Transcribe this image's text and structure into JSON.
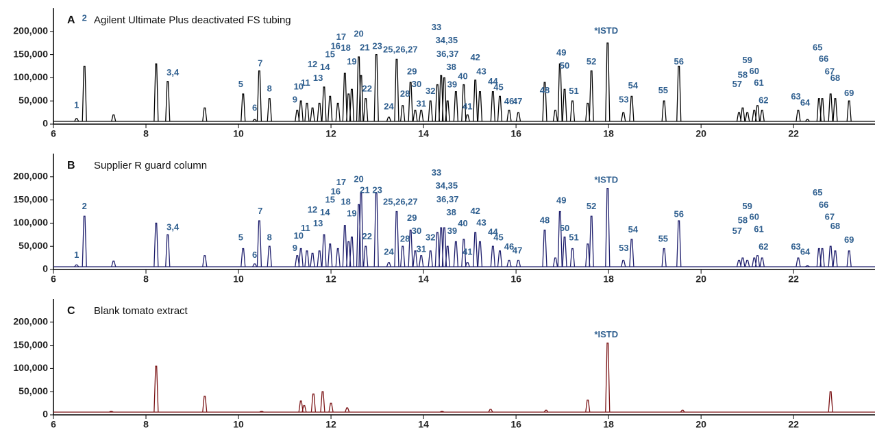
{
  "chart_data": [
    {
      "type": "line",
      "panel": "A",
      "title": "Agilent Ultimate Plus deactivated FS tubing",
      "color": "#000000",
      "label_color": "#2f5f8f",
      "xlim": [
        6,
        23.76
      ],
      "xticks": [
        6,
        8,
        10,
        12,
        14,
        16,
        18,
        20,
        22
      ],
      "ylim": [
        0,
        250000
      ],
      "yticks": [
        0,
        {
          "value": 50000,
          "label": "50,000"
        },
        {
          "value": 100000,
          "label": "100,000"
        },
        {
          "value": 150000,
          "label": "150,000"
        },
        {
          "value": 200000,
          "label": "200,000"
        }
      ],
      "x": [
        6.5,
        6.67,
        7.3,
        8.22,
        8.47,
        9.27,
        10.1,
        10.35,
        10.45,
        10.67,
        11.27,
        11.35,
        11.48,
        11.6,
        11.75,
        11.85,
        11.98,
        12.15,
        12.3,
        12.38,
        12.45,
        12.6,
        12.65,
        12.75,
        12.98,
        13.25,
        13.42,
        13.55,
        13.72,
        13.82,
        13.95,
        14.15,
        14.3,
        14.38,
        14.45,
        14.52,
        14.7,
        14.87,
        14.95,
        15.12,
        15.22,
        15.5,
        15.65,
        15.85,
        16.05,
        16.62,
        16.85,
        16.95,
        17.05,
        17.22,
        17.55,
        17.63,
        17.98,
        18.32,
        18.5,
        19.2,
        19.52,
        20.82,
        20.9,
        21.0,
        21.15,
        21.22,
        21.32,
        22.1,
        22.3,
        22.55,
        22.62,
        22.8,
        22.9,
        23.2
      ],
      "values": [
        12000,
        125000,
        20000,
        130000,
        92000,
        35000,
        65000,
        10000,
        115000,
        55000,
        30000,
        50000,
        45000,
        35000,
        45000,
        80000,
        60000,
        45000,
        110000,
        65000,
        75000,
        145000,
        105000,
        55000,
        150000,
        15000,
        140000,
        40000,
        90000,
        30000,
        30000,
        50000,
        85000,
        105000,
        100000,
        50000,
        70000,
        85000,
        20000,
        95000,
        70000,
        70000,
        60000,
        30000,
        25000,
        90000,
        30000,
        130000,
        75000,
        50000,
        45000,
        115000,
        175000,
        25000,
        60000,
        50000,
        125000,
        25000,
        35000,
        25000,
        30000,
        40000,
        30000,
        30000,
        10000,
        55000,
        55000,
        65000,
        55000,
        50000
      ],
      "annotations": [
        {
          "text": "1",
          "x": 6.5,
          "y": 40000
        },
        {
          "text": "2",
          "x": 6.67,
          "y": 228000
        },
        {
          "text": "3,4",
          "x": 8.58,
          "y": 110000
        },
        {
          "text": "5",
          "x": 10.05,
          "y": 85000
        },
        {
          "text": "6",
          "x": 10.35,
          "y": 34000
        },
        {
          "text": "7",
          "x": 10.47,
          "y": 130000
        },
        {
          "text": "8",
          "x": 10.67,
          "y": 75000
        },
        {
          "text": "9",
          "x": 11.22,
          "y": 52000
        },
        {
          "text": "10",
          "x": 11.3,
          "y": 80000
        },
        {
          "text": "11",
          "x": 11.45,
          "y": 88000
        },
        {
          "text": "12",
          "x": 11.6,
          "y": 128000
        },
        {
          "text": "13",
          "x": 11.72,
          "y": 98000
        },
        {
          "text": "14",
          "x": 11.87,
          "y": 122000
        },
        {
          "text": "15",
          "x": 11.98,
          "y": 149000
        },
        {
          "text": "16",
          "x": 12.1,
          "y": 167000
        },
        {
          "text": "17",
          "x": 12.22,
          "y": 187000
        },
        {
          "text": "18",
          "x": 12.32,
          "y": 163000
        },
        {
          "text": "19",
          "x": 12.45,
          "y": 134000
        },
        {
          "text": "20",
          "x": 12.6,
          "y": 194000
        },
        {
          "text": "21",
          "x": 12.73,
          "y": 164000
        },
        {
          "text": "22",
          "x": 12.78,
          "y": 75000
        },
        {
          "text": "23",
          "x": 13.0,
          "y": 167000
        },
        {
          "text": "24",
          "x": 13.25,
          "y": 37000
        },
        {
          "text": "25,26,27",
          "x": 13.5,
          "y": 160000
        },
        {
          "text": "28",
          "x": 13.6,
          "y": 64000
        },
        {
          "text": "29",
          "x": 13.75,
          "y": 112000
        },
        {
          "text": "30",
          "x": 13.85,
          "y": 85000
        },
        {
          "text": "31",
          "x": 13.95,
          "y": 43000
        },
        {
          "text": "32",
          "x": 14.15,
          "y": 70000
        },
        {
          "text": "33",
          "x": 14.28,
          "y": 208000
        },
        {
          "text": "34,35",
          "x": 14.5,
          "y": 180000
        },
        {
          "text": "36,37",
          "x": 14.52,
          "y": 150000
        },
        {
          "text": "38",
          "x": 14.6,
          "y": 122000
        },
        {
          "text": "39",
          "x": 14.62,
          "y": 84000
        },
        {
          "text": "40",
          "x": 14.85,
          "y": 102000
        },
        {
          "text": "41",
          "x": 14.95,
          "y": 37000
        },
        {
          "text": "42",
          "x": 15.12,
          "y": 143000
        },
        {
          "text": "43",
          "x": 15.25,
          "y": 112000
        },
        {
          "text": "44",
          "x": 15.5,
          "y": 91000
        },
        {
          "text": "45",
          "x": 15.62,
          "y": 78000
        },
        {
          "text": "46",
          "x": 15.85,
          "y": 48000
        },
        {
          "text": "47",
          "x": 16.03,
          "y": 48000
        },
        {
          "text": "48",
          "x": 16.62,
          "y": 72000
        },
        {
          "text": "49",
          "x": 16.98,
          "y": 153000
        },
        {
          "text": "50",
          "x": 17.05,
          "y": 125000
        },
        {
          "text": "51",
          "x": 17.25,
          "y": 70000
        },
        {
          "text": "52",
          "x": 17.63,
          "y": 134000
        },
        {
          "text": "*ISTD",
          "x": 17.95,
          "y": 200000
        },
        {
          "text": "53",
          "x": 18.33,
          "y": 52000
        },
        {
          "text": "54",
          "x": 18.53,
          "y": 82000
        },
        {
          "text": "55",
          "x": 19.18,
          "y": 72000
        },
        {
          "text": "56",
          "x": 19.52,
          "y": 134000
        },
        {
          "text": "57",
          "x": 20.78,
          "y": 85000
        },
        {
          "text": "58",
          "x": 20.9,
          "y": 105000
        },
        {
          "text": "59",
          "x": 21.0,
          "y": 137000
        },
        {
          "text": "60",
          "x": 21.15,
          "y": 113000
        },
        {
          "text": "61",
          "x": 21.25,
          "y": 88000
        },
        {
          "text": "62",
          "x": 21.35,
          "y": 50000
        },
        {
          "text": "63",
          "x": 22.05,
          "y": 58000
        },
        {
          "text": "64",
          "x": 22.25,
          "y": 45000
        },
        {
          "text": "65",
          "x": 22.52,
          "y": 164000
        },
        {
          "text": "66",
          "x": 22.65,
          "y": 140000
        },
        {
          "text": "67",
          "x": 22.78,
          "y": 112000
        },
        {
          "text": "68",
          "x": 22.9,
          "y": 98000
        },
        {
          "text": "69",
          "x": 23.2,
          "y": 66000
        }
      ]
    },
    {
      "type": "line",
      "panel": "B",
      "title": "Supplier R guard column",
      "color": "#1c1c6b",
      "label_color": "#2f5f8f",
      "xlim": [
        6,
        23.76
      ],
      "xticks": [
        6,
        8,
        10,
        12,
        14,
        16,
        18,
        20,
        22
      ],
      "ylim": [
        0,
        250000
      ],
      "yticks": [
        0,
        {
          "value": 50000,
          "label": "50,000"
        },
        {
          "value": 100000,
          "label": "100,000"
        },
        {
          "value": 150000,
          "label": "150,000"
        },
        {
          "value": 200000,
          "label": "200,000"
        }
      ],
      "x": [
        6.5,
        6.67,
        7.3,
        8.22,
        8.47,
        9.27,
        10.1,
        10.35,
        10.45,
        10.67,
        11.27,
        11.35,
        11.48,
        11.6,
        11.75,
        11.85,
        11.98,
        12.15,
        12.3,
        12.38,
        12.45,
        12.6,
        12.65,
        12.75,
        12.98,
        13.25,
        13.42,
        13.55,
        13.72,
        13.82,
        13.95,
        14.15,
        14.3,
        14.38,
        14.45,
        14.52,
        14.7,
        14.87,
        14.95,
        15.12,
        15.22,
        15.5,
        15.65,
        15.85,
        16.05,
        16.62,
        16.85,
        16.95,
        17.05,
        17.22,
        17.55,
        17.63,
        17.98,
        18.32,
        18.5,
        19.2,
        19.52,
        20.82,
        20.9,
        21.0,
        21.15,
        21.22,
        21.32,
        22.1,
        22.3,
        22.55,
        22.62,
        22.8,
        22.9,
        23.2
      ],
      "values": [
        10000,
        115000,
        18000,
        100000,
        75000,
        30000,
        45000,
        12000,
        105000,
        50000,
        30000,
        45000,
        40000,
        35000,
        40000,
        75000,
        55000,
        45000,
        95000,
        60000,
        70000,
        140000,
        165000,
        50000,
        165000,
        15000,
        125000,
        50000,
        85000,
        40000,
        30000,
        40000,
        80000,
        90000,
        90000,
        50000,
        60000,
        65000,
        15000,
        80000,
        60000,
        50000,
        40000,
        20000,
        20000,
        85000,
        25000,
        125000,
        70000,
        45000,
        55000,
        115000,
        175000,
        20000,
        65000,
        45000,
        105000,
        20000,
        25000,
        20000,
        25000,
        30000,
        25000,
        25000,
        8000,
        45000,
        45000,
        50000,
        40000,
        40000
      ],
      "annotations": [
        {
          "text": "1",
          "x": 6.5,
          "y": 30000
        },
        {
          "text": "2",
          "x": 6.67,
          "y": 135000
        },
        {
          "text": "3,4",
          "x": 8.58,
          "y": 90000
        },
        {
          "text": "5",
          "x": 10.05,
          "y": 68000
        },
        {
          "text": "6",
          "x": 10.35,
          "y": 30000
        },
        {
          "text": "7",
          "x": 10.47,
          "y": 125000
        },
        {
          "text": "8",
          "x": 10.67,
          "y": 68000
        },
        {
          "text": "9",
          "x": 11.22,
          "y": 45000
        },
        {
          "text": "10",
          "x": 11.3,
          "y": 72000
        },
        {
          "text": "11",
          "x": 11.45,
          "y": 88000
        },
        {
          "text": "12",
          "x": 11.6,
          "y": 128000
        },
        {
          "text": "13",
          "x": 11.72,
          "y": 98000
        },
        {
          "text": "14",
          "x": 11.87,
          "y": 122000
        },
        {
          "text": "15",
          "x": 11.98,
          "y": 149000
        },
        {
          "text": "16",
          "x": 12.1,
          "y": 167000
        },
        {
          "text": "17",
          "x": 12.22,
          "y": 187000
        },
        {
          "text": "18",
          "x": 12.32,
          "y": 145000
        },
        {
          "text": "19",
          "x": 12.45,
          "y": 120000
        },
        {
          "text": "20",
          "x": 12.6,
          "y": 194000
        },
        {
          "text": "21",
          "x": 12.73,
          "y": 170000
        },
        {
          "text": "22",
          "x": 12.78,
          "y": 70000
        },
        {
          "text": "23",
          "x": 13.0,
          "y": 170000
        },
        {
          "text": "24",
          "x": 13.25,
          "y": 37000
        },
        {
          "text": "25,26,27",
          "x": 13.5,
          "y": 145000
        },
        {
          "text": "28",
          "x": 13.6,
          "y": 65000
        },
        {
          "text": "29",
          "x": 13.75,
          "y": 110000
        },
        {
          "text": "30",
          "x": 13.85,
          "y": 82000
        },
        {
          "text": "31",
          "x": 13.95,
          "y": 43000
        },
        {
          "text": "32",
          "x": 14.15,
          "y": 68000
        },
        {
          "text": "33",
          "x": 14.28,
          "y": 208000
        },
        {
          "text": "34,35",
          "x": 14.5,
          "y": 180000
        },
        {
          "text": "36,37",
          "x": 14.52,
          "y": 150000
        },
        {
          "text": "38",
          "x": 14.6,
          "y": 122000
        },
        {
          "text": "39",
          "x": 14.62,
          "y": 82000
        },
        {
          "text": "40",
          "x": 14.85,
          "y": 98000
        },
        {
          "text": "41",
          "x": 14.95,
          "y": 37000
        },
        {
          "text": "42",
          "x": 15.12,
          "y": 125000
        },
        {
          "text": "43",
          "x": 15.25,
          "y": 100000
        },
        {
          "text": "44",
          "x": 15.5,
          "y": 80000
        },
        {
          "text": "45",
          "x": 15.62,
          "y": 68000
        },
        {
          "text": "46",
          "x": 15.85,
          "y": 48000
        },
        {
          "text": "47",
          "x": 16.03,
          "y": 40000
        },
        {
          "text": "48",
          "x": 16.62,
          "y": 105000
        },
        {
          "text": "49",
          "x": 16.98,
          "y": 148000
        },
        {
          "text": "50",
          "x": 17.05,
          "y": 88000
        },
        {
          "text": "51",
          "x": 17.25,
          "y": 68000
        },
        {
          "text": "52",
          "x": 17.63,
          "y": 135000
        },
        {
          "text": "*ISTD",
          "x": 17.95,
          "y": 192000
        },
        {
          "text": "53",
          "x": 18.33,
          "y": 45000
        },
        {
          "text": "54",
          "x": 18.53,
          "y": 85000
        },
        {
          "text": "55",
          "x": 19.18,
          "y": 65000
        },
        {
          "text": "56",
          "x": 19.52,
          "y": 118000
        },
        {
          "text": "57",
          "x": 20.78,
          "y": 82000
        },
        {
          "text": "58",
          "x": 20.9,
          "y": 105000
        },
        {
          "text": "59",
          "x": 21.0,
          "y": 135000
        },
        {
          "text": "60",
          "x": 21.15,
          "y": 112000
        },
        {
          "text": "61",
          "x": 21.25,
          "y": 86000
        },
        {
          "text": "62",
          "x": 21.35,
          "y": 48000
        },
        {
          "text": "63",
          "x": 22.05,
          "y": 48000
        },
        {
          "text": "64",
          "x": 22.25,
          "y": 37000
        },
        {
          "text": "65",
          "x": 22.52,
          "y": 165000
        },
        {
          "text": "66",
          "x": 22.65,
          "y": 138000
        },
        {
          "text": "67",
          "x": 22.78,
          "y": 112000
        },
        {
          "text": "68",
          "x": 22.9,
          "y": 92000
        },
        {
          "text": "69",
          "x": 23.2,
          "y": 63000
        }
      ]
    },
    {
      "type": "line",
      "panel": "C",
      "title": "Blank tomato extract",
      "color": "#7a1214",
      "label_color": "#2f5f8f",
      "xlim": [
        6,
        23.76
      ],
      "xticks": [
        6,
        8,
        10,
        12,
        14,
        16,
        18,
        20,
        22
      ],
      "ylim": [
        0,
        250000
      ],
      "yticks": [
        0,
        {
          "value": 50000,
          "label": "50,000"
        },
        {
          "value": 100000,
          "label": "100,000"
        },
        {
          "value": 150000,
          "label": "150,000"
        },
        {
          "value": 200000,
          "label": "200,000"
        }
      ],
      "x": [
        7.25,
        8.22,
        9.27,
        10.5,
        11.35,
        11.42,
        11.62,
        11.82,
        12.0,
        12.35,
        14.4,
        15.45,
        16.65,
        17.55,
        17.98,
        19.6,
        22.8
      ],
      "values": [
        8000,
        105000,
        40000,
        8000,
        30000,
        20000,
        45000,
        50000,
        25000,
        15000,
        8000,
        12000,
        10000,
        32000,
        155000,
        10000,
        50000
      ],
      "annotations": [
        {
          "text": "*ISTD",
          "x": 17.95,
          "y": 172000
        }
      ]
    }
  ]
}
